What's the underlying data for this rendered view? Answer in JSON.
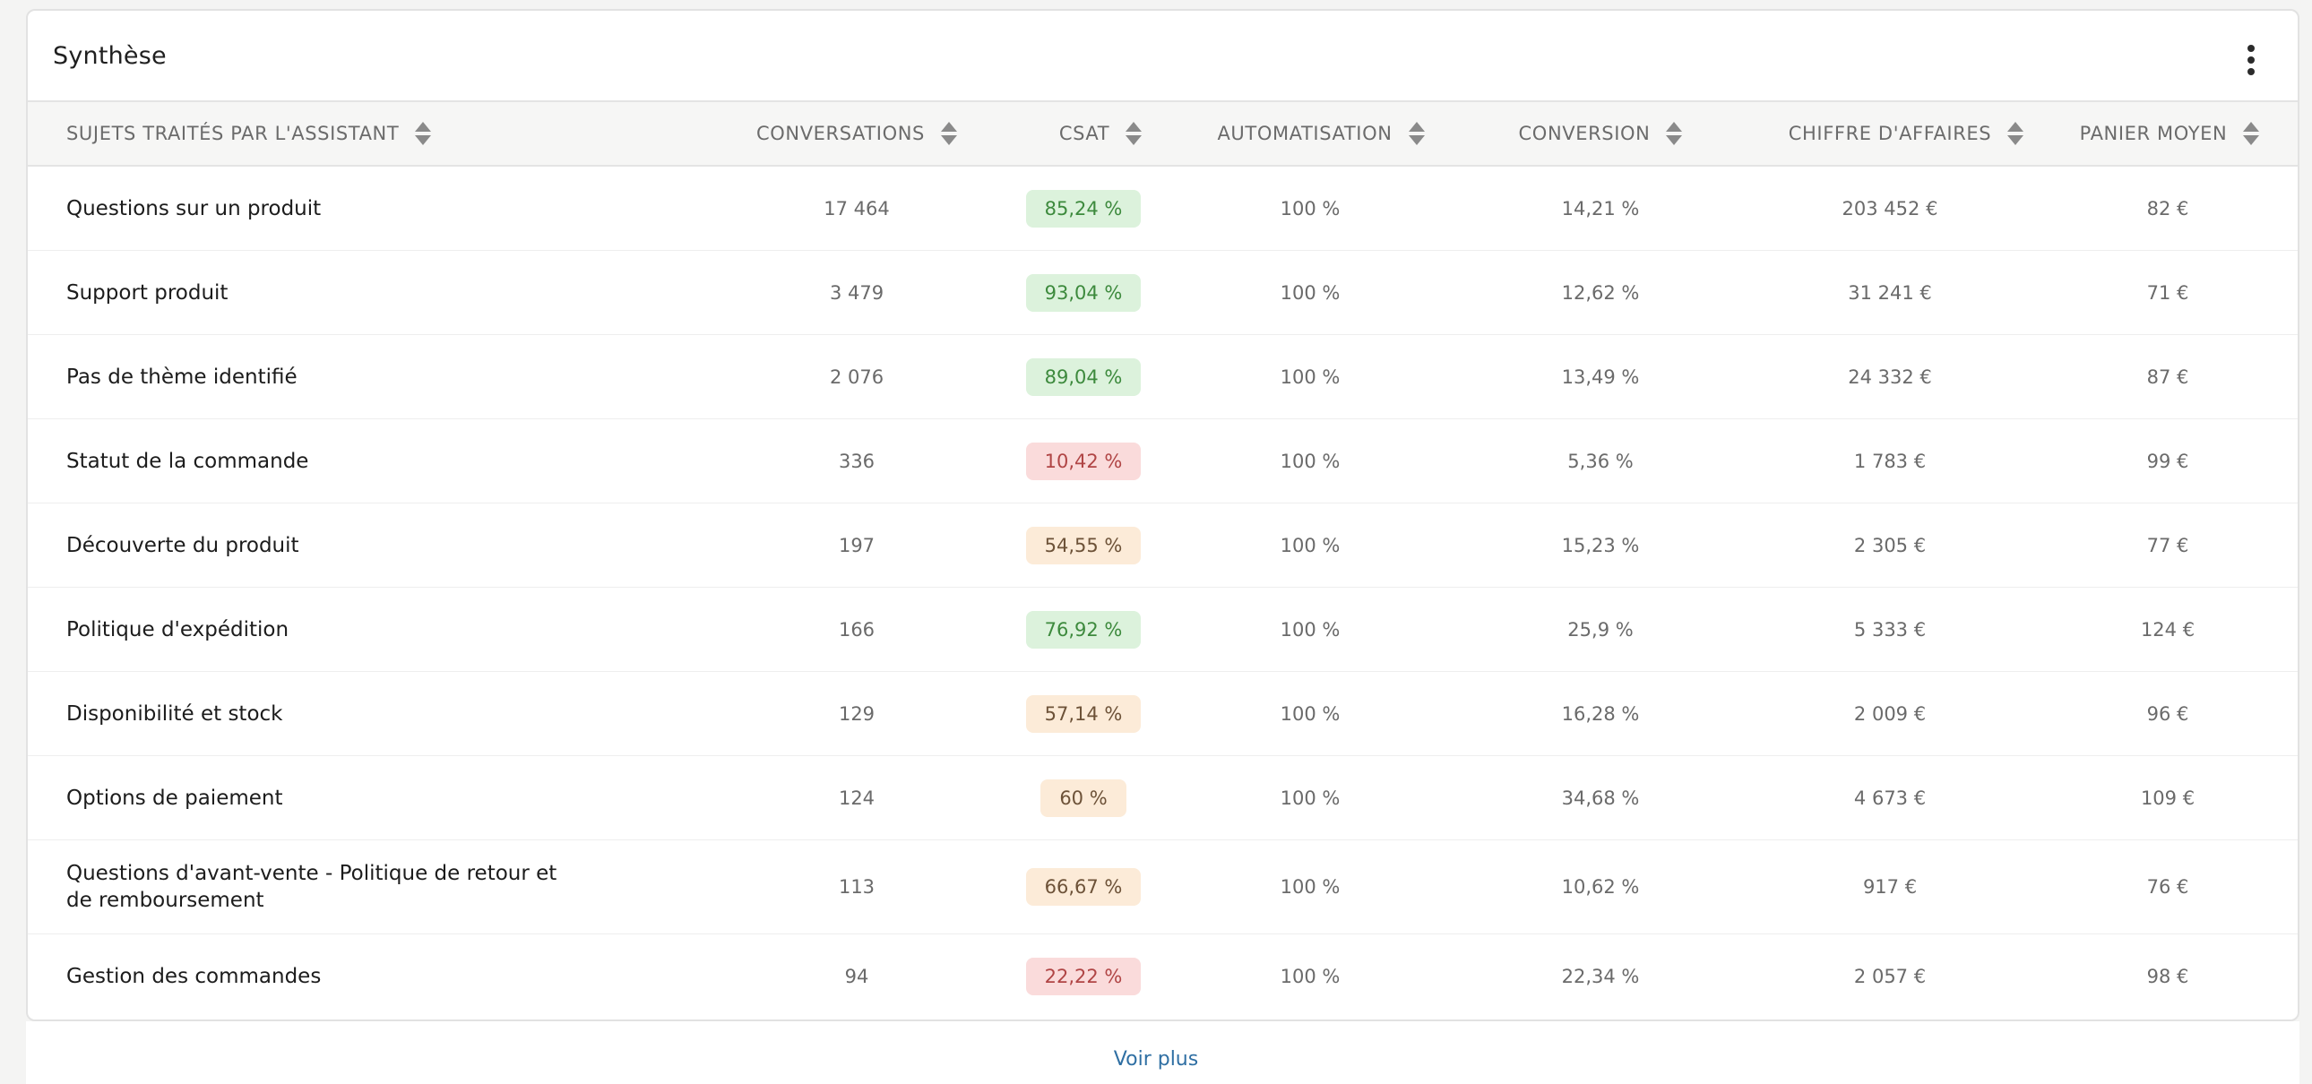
{
  "card": {
    "title": "Synthèse",
    "menu_icon": "kebab-menu-icon"
  },
  "columns": [
    {
      "label": "SUJETS TRAITÉS PAR L'ASSISTANT"
    },
    {
      "label": "CONVERSATIONS"
    },
    {
      "label": "CSAT"
    },
    {
      "label": "AUTOMATISATION"
    },
    {
      "label": "CONVERSION"
    },
    {
      "label": "CHIFFRE D'AFFAIRES"
    },
    {
      "label": "PANIER MOYEN"
    }
  ],
  "rows": [
    {
      "topic": "Questions sur un produit",
      "conversations": "17 464",
      "csat": "85,24 %",
      "csat_level": "good",
      "automatisation": "100 %",
      "conversion": "14,21 %",
      "ca": "203 452 €",
      "panier": "82 €"
    },
    {
      "topic": "Support produit",
      "conversations": "3 479",
      "csat": "93,04 %",
      "csat_level": "good",
      "automatisation": "100 %",
      "conversion": "12,62 %",
      "ca": "31 241 €",
      "panier": "71 €"
    },
    {
      "topic": "Pas de thème identifié",
      "conversations": "2 076",
      "csat": "89,04 %",
      "csat_level": "good",
      "automatisation": "100 %",
      "conversion": "13,49 %",
      "ca": "24 332 €",
      "panier": "87 €"
    },
    {
      "topic": "Statut de la commande",
      "conversations": "336",
      "csat": "10,42 %",
      "csat_level": "bad",
      "automatisation": "100 %",
      "conversion": "5,36 %",
      "ca": "1 783 €",
      "panier": "99 €"
    },
    {
      "topic": "Découverte du produit",
      "conversations": "197",
      "csat": "54,55 %",
      "csat_level": "mid",
      "automatisation": "100 %",
      "conversion": "15,23 %",
      "ca": "2 305 €",
      "panier": "77 €"
    },
    {
      "topic": "Politique d'expédition",
      "conversations": "166",
      "csat": "76,92 %",
      "csat_level": "good",
      "automatisation": "100 %",
      "conversion": "25,9 %",
      "ca": "5 333 €",
      "panier": "124 €"
    },
    {
      "topic": "Disponibilité et stock",
      "conversations": "129",
      "csat": "57,14 %",
      "csat_level": "mid",
      "automatisation": "100 %",
      "conversion": "16,28 %",
      "ca": "2 009 €",
      "panier": "96 €"
    },
    {
      "topic": "Options de paiement",
      "conversations": "124",
      "csat": "60 %",
      "csat_level": "mid",
      "automatisation": "100 %",
      "conversion": "34,68 %",
      "ca": "4 673 €",
      "panier": "109 €"
    },
    {
      "topic": "Questions d'avant-vente - Politique de retour et de remboursement",
      "conversations": "113",
      "csat": "66,67 %",
      "csat_level": "mid",
      "automatisation": "100 %",
      "conversion": "10,62 %",
      "ca": "917 €",
      "panier": "76 €"
    },
    {
      "topic": "Gestion des commandes",
      "conversations": "94",
      "csat": "22,22 %",
      "csat_level": "bad",
      "automatisation": "100 %",
      "conversion": "22,34 %",
      "ca": "2 057 €",
      "panier": "98 €"
    }
  ],
  "colors": {
    "csat_good_bg": "#dcf2dc",
    "csat_bad_bg": "#fadbdb",
    "csat_mid_bg": "#fcebd8",
    "link": "#2f6fa3"
  },
  "footer": {
    "voir_plus": "Voir plus"
  }
}
